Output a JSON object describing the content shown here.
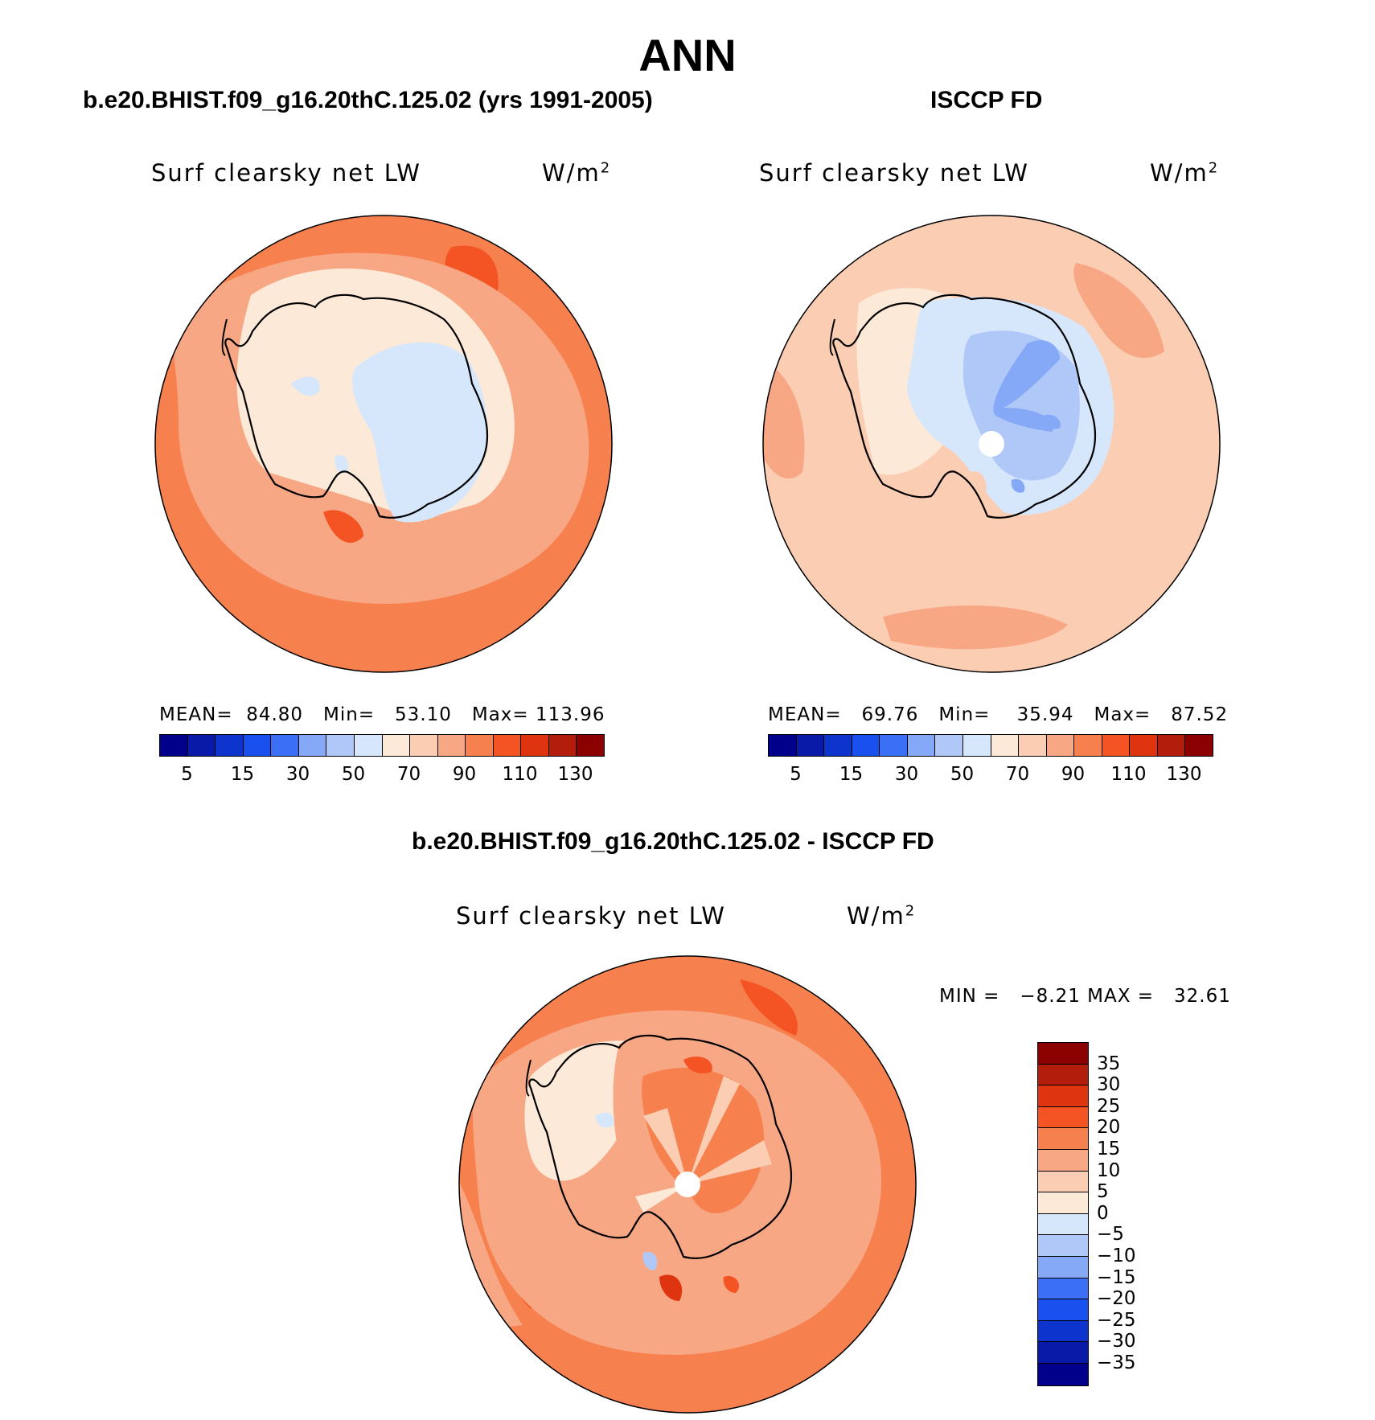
{
  "figure": {
    "season": "ANN",
    "left_panel": {
      "title": "b.e20.BHIST.f09_g16.20thC.125.02 (yrs 1991-2005)",
      "variable": "Surf clearsky net LW",
      "units": "W/m",
      "units_sup": "2",
      "mean_label": "MEAN=",
      "mean_value": "84.80",
      "min_label": "Min=",
      "min_value": "53.10",
      "max_label": "Max=",
      "max_value": "113.96"
    },
    "right_panel": {
      "title": "ISCCP FD",
      "variable": "Surf clearsky net LW",
      "units": "W/m",
      "units_sup": "2",
      "mean_label": "MEAN=",
      "mean_value": "69.76",
      "min_label": "Min=",
      "min_value": "35.94",
      "max_label": "Max=",
      "max_value": "87.52"
    },
    "diff_panel": {
      "title": "b.e20.BHIST.f09_g16.20thC.125.02 - ISCCP FD",
      "variable": "Surf clearsky net LW",
      "units": "W/m",
      "units_sup": "2",
      "min_label": "MIN =",
      "min_value": "−8.21",
      "max_label": "MAX =",
      "max_value": "32.61"
    },
    "abs_colorbar": {
      "colors": [
        "#00008b",
        "#0a1aa8",
        "#0d34cc",
        "#1a50ed",
        "#3b6ff5",
        "#85a8f7",
        "#b0c8f8",
        "#d6e6fb",
        "#fde9d8",
        "#fbcdb3",
        "#f8a784",
        "#f7804f",
        "#f45424",
        "#de3510",
        "#b31e0c",
        "#8b0000"
      ],
      "tick_labels": [
        "5",
        "15",
        "30",
        "50",
        "70",
        "90",
        "110",
        "130"
      ]
    },
    "diff_colorbar": {
      "colors": [
        "#8b0000",
        "#b31e0c",
        "#de3510",
        "#f45424",
        "#f7804f",
        "#f8a784",
        "#fbcdb3",
        "#fde9d8",
        "#d6e6fb",
        "#b0c8f8",
        "#85a8f7",
        "#3b6ff5",
        "#1a50ed",
        "#0d34cc",
        "#0a1aa8",
        "#00008b"
      ],
      "tick_labels": [
        "35",
        "30",
        "25",
        "20",
        "15",
        "10",
        "5",
        "0",
        "−5",
        "−10",
        "−15",
        "−20",
        "−25",
        "−30",
        "−35"
      ]
    }
  }
}
